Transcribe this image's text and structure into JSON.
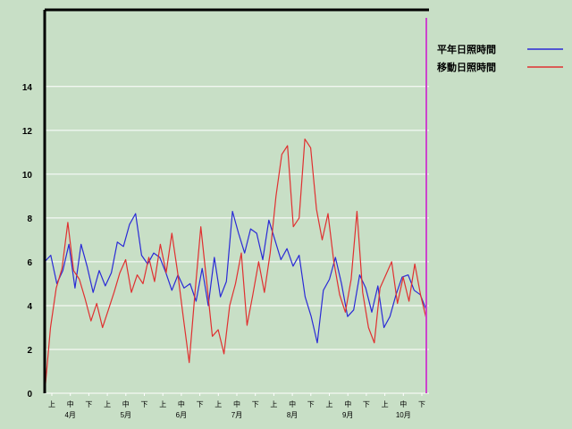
{
  "chart_data": {
    "type": "line",
    "ylim": [
      0,
      17.5
    ],
    "y_ticks": [
      0,
      2,
      4,
      6,
      8,
      10,
      12,
      14
    ],
    "grid": true,
    "legend_position": "top-right",
    "x_labels": [
      "上",
      "中",
      "下",
      "上",
      "中",
      "下",
      "上",
      "中",
      "下",
      "上",
      "中",
      "下",
      "上",
      "中",
      "下",
      "上",
      "中",
      "下",
      "上",
      "中",
      "下"
    ],
    "months": [
      "4月",
      "5月",
      "6月",
      "7月",
      "8月",
      "9月",
      "10月"
    ],
    "colors": {
      "background": "#c8dfc6",
      "grid": "#ffffff",
      "axis": "#000000",
      "marker": "#cc44cc"
    },
    "series": [
      {
        "name": "平年日照時間",
        "color": "#2a2ad6",
        "values": [
          6.0,
          6.3,
          5.0,
          5.6,
          6.8,
          4.8,
          6.8,
          5.8,
          4.6,
          5.6,
          4.9,
          5.5,
          6.9,
          6.7,
          7.7,
          8.2,
          6.3,
          5.9,
          6.4,
          6.2,
          5.5,
          4.7,
          5.4,
          4.8,
          5.0,
          4.2,
          5.7,
          4.0,
          6.2,
          4.4,
          5.1,
          8.3,
          7.3,
          6.4,
          7.5,
          7.3,
          6.1,
          7.9,
          7.0,
          6.1,
          6.6,
          5.8,
          6.3,
          4.4,
          3.5,
          2.3,
          4.7,
          5.2,
          6.2,
          5.0,
          3.5,
          3.8,
          5.4,
          4.8,
          3.7,
          4.9,
          3.0,
          3.5,
          4.5,
          5.3,
          5.4,
          4.7,
          4.5,
          3.8
        ]
      },
      {
        "name": "移動日照時間",
        "color": "#e03030",
        "values": [
          0.0,
          3.0,
          4.8,
          5.7,
          7.8,
          5.6,
          5.2,
          4.3,
          3.3,
          4.1,
          3.0,
          3.8,
          4.6,
          5.5,
          6.1,
          4.6,
          5.4,
          5.0,
          6.2,
          5.1,
          6.8,
          5.5,
          7.3,
          5.5,
          3.4,
          1.4,
          4.6,
          7.6,
          5.1,
          2.6,
          2.9,
          1.8,
          4.0,
          5.0,
          6.4,
          3.1,
          4.5,
          6.0,
          4.6,
          6.4,
          9.0,
          10.9,
          11.3,
          7.6,
          8.0,
          11.6,
          11.2,
          8.4,
          7.0,
          8.2,
          6.0,
          4.5,
          3.7,
          5.2,
          8.3,
          4.6,
          3.0,
          2.3,
          4.8,
          5.4,
          6.0,
          4.1,
          5.3,
          4.2,
          5.9,
          4.5,
          3.4
        ]
      }
    ]
  }
}
